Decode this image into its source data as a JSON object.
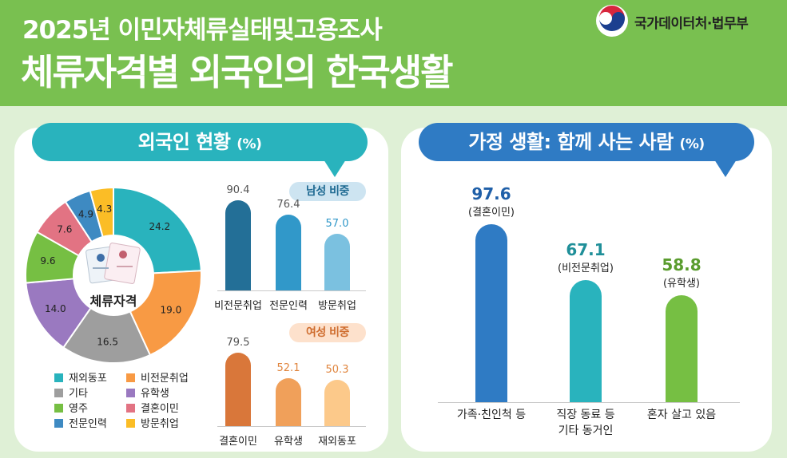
{
  "header": {
    "sup_title": "2025년 이민자체류실태및고용조사",
    "main_title": "체류자격별 외국인의 한국생활",
    "logo_text": "국가데이터처·법무부"
  },
  "left_panel": {
    "banner_title": "외국인 현황",
    "banner_unit": "(%)",
    "donut_center": "체류자격",
    "male_tag": "남성 비중",
    "female_tag": "여성 비중"
  },
  "right_panel": {
    "banner_title": "가정 생활: 함께 사는 사람",
    "banner_unit": "(%)"
  },
  "colors": {
    "header_green": "#79c050",
    "teal": "#29b3bd",
    "blue_banner": "#2f7bc4"
  },
  "chart_data": [
    {
      "type": "pie",
      "title": "외국인 현황",
      "unit": "%",
      "center_label": "체류자격",
      "slices": [
        {
          "name": "재외동포",
          "value": 24.2,
          "label": "24.2",
          "color": "#29b3bd"
        },
        {
          "name": "비전문취업",
          "value": 19.0,
          "label": "19.0",
          "color": "#f89a44"
        },
        {
          "name": "기타",
          "value": 16.5,
          "label": "16.5",
          "color": "#9e9e9e"
        },
        {
          "name": "유학생",
          "value": 14.0,
          "label": "14.0",
          "color": "#9a79c0"
        },
        {
          "name": "영주",
          "value": 9.6,
          "label": "9.6",
          "color": "#76bf43"
        },
        {
          "name": "결혼이민",
          "value": 7.6,
          "label": "7.6",
          "color": "#e27383"
        },
        {
          "name": "전문인력",
          "value": 4.9,
          "label": "4.9",
          "color": "#3e8ac2"
        },
        {
          "name": "방문취업",
          "value": 4.3,
          "label": "4.3",
          "color": "#fbbd26"
        }
      ],
      "legend": [
        [
          "재외동포",
          "비전문취업"
        ],
        [
          "기타",
          "유학생"
        ],
        [
          "영주",
          "결혼이민"
        ],
        [
          "전문인력",
          "방문취업"
        ]
      ]
    },
    {
      "type": "bar",
      "title": "남성 비중",
      "categories": [
        "비전문취업",
        "전문인력",
        "방문취업"
      ],
      "values": [
        90.4,
        76.4,
        57.0
      ],
      "labels": [
        "90.4",
        "76.4",
        "57.0"
      ],
      "colors": [
        "#236f97",
        "#3198c9",
        "#7bc1e0"
      ]
    },
    {
      "type": "bar",
      "title": "여성 비중",
      "categories": [
        "결혼이민",
        "유학생",
        "재외동포"
      ],
      "values": [
        79.5,
        52.1,
        50.3
      ],
      "labels": [
        "79.5",
        "52.1",
        "50.3"
      ],
      "colors": [
        "#d9773a",
        "#f0a05a",
        "#fcc98a"
      ]
    },
    {
      "type": "bar",
      "title": "가정 생활: 함께 사는 사람",
      "unit": "%",
      "categories": [
        "가족·친인척 등",
        "직장 동료 등 기타 동거인",
        "혼자 살고 있음"
      ],
      "category_lines": [
        [
          "가족·친인척 등"
        ],
        [
          "직장 동료 등",
          "기타 동거인"
        ],
        [
          "혼자 살고 있음"
        ]
      ],
      "values": [
        97.6,
        67.1,
        58.8
      ],
      "labels": [
        "97.6",
        "67.1",
        "58.8"
      ],
      "sublabels": [
        "(결혼이민)",
        "(비전문취업)",
        "(유학생)"
      ],
      "colors": [
        "#2f7bc4",
        "#29b3bd",
        "#76bf43"
      ],
      "value_colors": [
        "#1f5fa8",
        "#1f8f99",
        "#5a9c2e"
      ]
    }
  ]
}
